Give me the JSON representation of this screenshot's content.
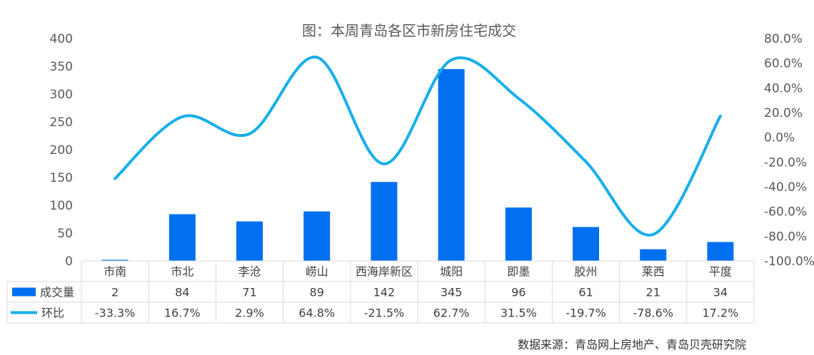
{
  "chart_data": {
    "type": "bar",
    "title": "图：本周青岛各区市新房住宅成交",
    "categories": [
      "市南",
      "市北",
      "李沧",
      "崂山",
      "西海岸新区",
      "城阳",
      "即墨",
      "胶州",
      "莱西",
      "平度"
    ],
    "series": [
      {
        "name": "成交量",
        "type": "bar",
        "axis": "left",
        "color": "#0070F0",
        "values": [
          2,
          84,
          71,
          89,
          142,
          345,
          96,
          61,
          21,
          34
        ]
      },
      {
        "name": "环比",
        "type": "line",
        "axis": "right",
        "color": "#17AEEB",
        "smooth": true,
        "values": [
          -33.3,
          16.7,
          2.9,
          64.8,
          -21.5,
          62.7,
          31.5,
          -19.7,
          -78.6,
          17.2
        ]
      }
    ],
    "table": {
      "bar_row": [
        "2",
        "84",
        "71",
        "89",
        "142",
        "345",
        "96",
        "61",
        "21",
        "34"
      ],
      "line_row": [
        "-33.3%",
        "16.7%",
        "2.9%",
        "64.8%",
        "-21.5%",
        "62.7%",
        "31.5%",
        "-19.7%",
        "-78.6%",
        "17.2%"
      ]
    },
    "y_left": {
      "min": 0,
      "max": 400,
      "ticks": [
        "0",
        "50",
        "100",
        "150",
        "200",
        "250",
        "300",
        "350",
        "400"
      ]
    },
    "y_right": {
      "min": -100,
      "max": 80,
      "ticks": [
        "-100.0%",
        "-80.0%",
        "-60.0%",
        "-40.0%",
        "-20.0%",
        "0.0%",
        "20.0%",
        "40.0%",
        "60.0%",
        "80.0%"
      ]
    },
    "grid": false,
    "legend": "data-table",
    "source": "数据来源：青岛网上房地产、青岛贝壳研究院"
  }
}
